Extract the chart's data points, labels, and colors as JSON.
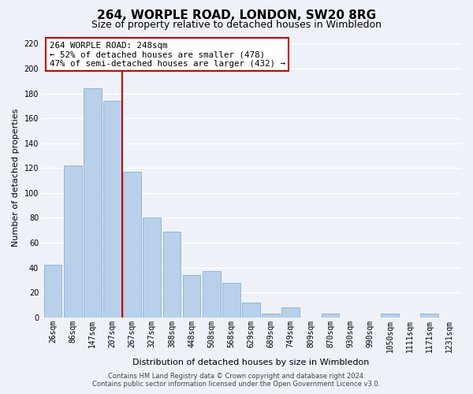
{
  "title": "264, WORPLE ROAD, LONDON, SW20 8RG",
  "subtitle": "Size of property relative to detached houses in Wimbledon",
  "xlabel": "Distribution of detached houses by size in Wimbledon",
  "ylabel": "Number of detached properties",
  "bar_labels": [
    "26sqm",
    "86sqm",
    "147sqm",
    "207sqm",
    "267sqm",
    "327sqm",
    "388sqm",
    "448sqm",
    "508sqm",
    "568sqm",
    "629sqm",
    "689sqm",
    "749sqm",
    "809sqm",
    "870sqm",
    "930sqm",
    "990sqm",
    "1050sqm",
    "1111sqm",
    "1171sqm",
    "1231sqm"
  ],
  "bar_heights": [
    42,
    122,
    184,
    174,
    117,
    80,
    69,
    34,
    37,
    28,
    12,
    3,
    8,
    0,
    3,
    0,
    0,
    3,
    0,
    3,
    0
  ],
  "bar_color": "#b8d0ea",
  "bar_edge_color": "#8aaed0",
  "vline_x_index": 3,
  "vline_color": "#cc0000",
  "ylim": [
    0,
    225
  ],
  "yticks": [
    0,
    20,
    40,
    60,
    80,
    100,
    120,
    140,
    160,
    180,
    200,
    220
  ],
  "annotation_title": "264 WORPLE ROAD: 248sqm",
  "annotation_line1": "← 52% of detached houses are smaller (478)",
  "annotation_line2": "47% of semi-detached houses are larger (432) →",
  "footer_line1": "Contains HM Land Registry data © Crown copyright and database right 2024.",
  "footer_line2": "Contains public sector information licensed under the Open Government Licence v3.0.",
  "background_color": "#eef2f8",
  "grid_color": "#ffffff",
  "title_fontsize": 11,
  "subtitle_fontsize": 9,
  "axis_label_fontsize": 8,
  "tick_fontsize": 7,
  "footer_fontsize": 6
}
